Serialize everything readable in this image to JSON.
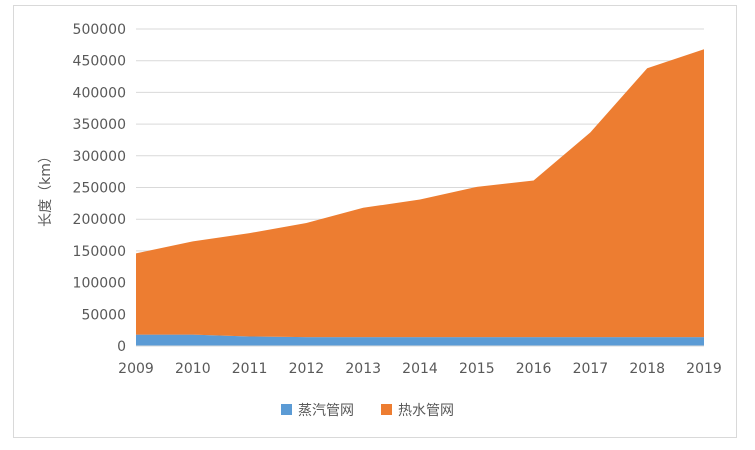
{
  "chart_data": {
    "type": "area",
    "stacked": true,
    "title": "",
    "xlabel": "",
    "ylabel": "长度（km）",
    "ylim": [
      0,
      500000
    ],
    "yticks": [
      0,
      50000,
      100000,
      150000,
      200000,
      250000,
      300000,
      350000,
      400000,
      450000,
      500000
    ],
    "ytick_labels": [
      "0",
      "50000",
      "100000",
      "150000",
      "200000",
      "250000",
      "300000",
      "350000",
      "400000",
      "450000",
      "500000"
    ],
    "categories": [
      "2009",
      "2010",
      "2011",
      "2012",
      "2013",
      "2014",
      "2015",
      "2016",
      "2017",
      "2018",
      "2019"
    ],
    "series": [
      {
        "name": "蒸汽管网",
        "color": "#5b9bd5",
        "values": [
          18000,
          18000,
          15000,
          14000,
          14000,
          14000,
          14000,
          14000,
          14000,
          14000,
          14000
        ]
      },
      {
        "name": "热水管网",
        "color": "#ed7d31",
        "values": [
          128000,
          147000,
          163000,
          180000,
          204000,
          217000,
          237000,
          247000,
          323000,
          424000,
          454000
        ]
      }
    ],
    "grid": "horizontal",
    "legend": "bottom"
  }
}
